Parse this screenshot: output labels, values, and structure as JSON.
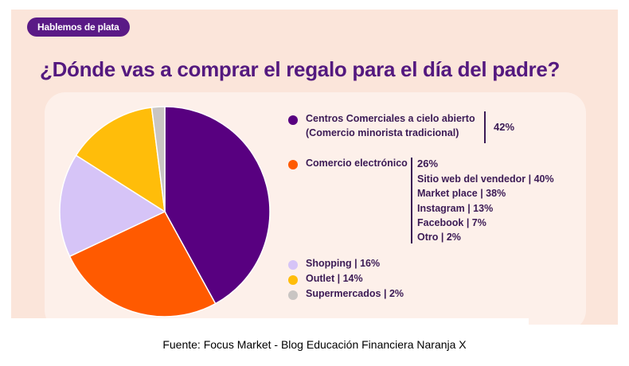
{
  "badge": "Hablemos de plata",
  "title": "¿Dónde vas a comprar el regalo para el día del padre?",
  "source": "Fuente: Focus Market - Blog Educación Financiera Naranja X",
  "colors": {
    "purple": "#580080",
    "orange": "#ff5a00",
    "lilac": "#d6c4f7",
    "yellow": "#ffbd0a",
    "gray": "#c9c5c3"
  },
  "legend": {
    "centros": {
      "line1": "Centros Comerciales a cielo abierto",
      "line2": "(Comercio minorista tradicional)",
      "pct": "42%"
    },
    "ecommerce": {
      "label": "Comercio electrónico",
      "pct": "26%",
      "sub": [
        "Sitio web del vendedor | 40%",
        "Market place | 38%",
        "Instagram | 13%",
        "Facebook | 7%",
        "Otro | 2%"
      ]
    },
    "shopping": {
      "label": "Shopping",
      "pct": "| 16%"
    },
    "outlet": {
      "label": "Outlet",
      "pct": "| 14%"
    },
    "super": {
      "label": "Supermercados",
      "pct": "| 2%"
    }
  },
  "chart_data": {
    "type": "pie",
    "title": "¿Dónde vas a comprar el regalo para el día del padre?",
    "slices": [
      {
        "name": "Centros Comerciales a cielo abierto (Comercio minorista tradicional)",
        "value": 42,
        "color": "#580080"
      },
      {
        "name": "Comercio electrónico",
        "value": 26,
        "color": "#ff5a00"
      },
      {
        "name": "Shopping",
        "value": 16,
        "color": "#d6c4f7"
      },
      {
        "name": "Outlet",
        "value": 14,
        "color": "#ffbd0a"
      },
      {
        "name": "Supermercados",
        "value": 2,
        "color": "#c9c5c3"
      }
    ],
    "sub_breakdown": {
      "parent": "Comercio electrónico",
      "items": [
        {
          "name": "Sitio web del vendedor",
          "value": 40
        },
        {
          "name": "Market place",
          "value": 38
        },
        {
          "name": "Instagram",
          "value": 13
        },
        {
          "name": "Facebook",
          "value": 7
        },
        {
          "name": "Otro",
          "value": 2
        }
      ]
    },
    "legend_position": "right"
  }
}
